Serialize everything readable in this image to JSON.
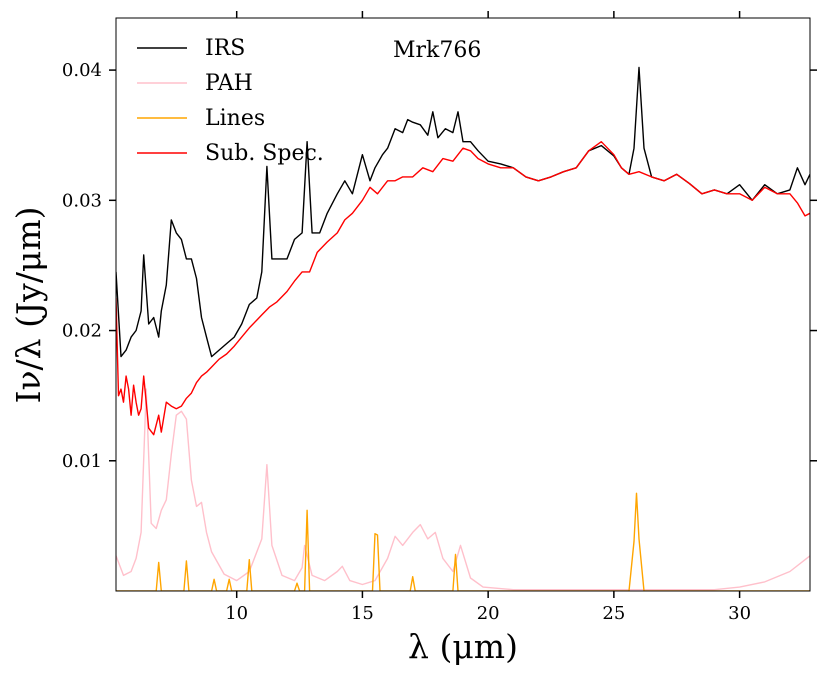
{
  "chart_data": {
    "type": "line",
    "title": "",
    "annotation": "Mrk766",
    "xlabel": "λ (μm)",
    "ylabel": "Iν/λ (Jy/μm)",
    "xlim": [
      5.2,
      32.8
    ],
    "ylim": [
      0.0,
      0.044
    ],
    "x_ticks": [
      10,
      15,
      20,
      25,
      30
    ],
    "x_tick_labels": [
      "10",
      "15",
      "20",
      "25",
      "30"
    ],
    "y_ticks": [
      0.01,
      0.02,
      0.03,
      0.04
    ],
    "y_tick_labels": [
      "0.01",
      "0.02",
      "0.03",
      "0.04"
    ],
    "grid": false,
    "legend_position": "top-left",
    "series": [
      {
        "name": "IRS",
        "color": "#000000",
        "x": [
          5.2,
          5.4,
          5.6,
          5.8,
          6.0,
          6.2,
          6.3,
          6.5,
          6.7,
          6.9,
          7.0,
          7.2,
          7.4,
          7.6,
          7.8,
          8.0,
          8.2,
          8.4,
          8.6,
          8.8,
          9.0,
          9.3,
          9.6,
          9.9,
          10.2,
          10.5,
          10.8,
          11.0,
          11.2,
          11.4,
          11.7,
          12.0,
          12.3,
          12.6,
          12.8,
          13.0,
          13.3,
          13.6,
          14.0,
          14.3,
          14.6,
          15.0,
          15.3,
          15.5,
          15.8,
          16.0,
          16.3,
          16.6,
          16.8,
          17.0,
          17.3,
          17.6,
          17.8,
          18.0,
          18.3,
          18.6,
          18.8,
          19.0,
          19.3,
          19.6,
          20.0,
          20.5,
          21.0,
          21.5,
          22.0,
          22.5,
          23.0,
          23.5,
          24.0,
          24.5,
          25.0,
          25.3,
          25.6,
          25.8,
          26.0,
          26.2,
          26.5,
          27.0,
          27.5,
          28.0,
          28.5,
          29.0,
          29.5,
          30.0,
          30.5,
          31.0,
          31.5,
          32.0,
          32.3,
          32.6,
          32.8
        ],
        "y": [
          0.0245,
          0.018,
          0.0185,
          0.0195,
          0.02,
          0.0215,
          0.0258,
          0.0205,
          0.021,
          0.0195,
          0.0215,
          0.0235,
          0.0285,
          0.0275,
          0.027,
          0.0255,
          0.0255,
          0.024,
          0.021,
          0.0195,
          0.018,
          0.0185,
          0.019,
          0.0195,
          0.0205,
          0.022,
          0.0225,
          0.0245,
          0.0326,
          0.0255,
          0.0255,
          0.0255,
          0.027,
          0.0275,
          0.0345,
          0.0275,
          0.0275,
          0.029,
          0.0305,
          0.0315,
          0.0305,
          0.0335,
          0.0315,
          0.0325,
          0.0335,
          0.034,
          0.0355,
          0.0352,
          0.0362,
          0.036,
          0.0358,
          0.035,
          0.0368,
          0.0348,
          0.0355,
          0.0352,
          0.0368,
          0.0345,
          0.0345,
          0.0338,
          0.033,
          0.0328,
          0.0325,
          0.0318,
          0.0315,
          0.0318,
          0.0322,
          0.0325,
          0.0338,
          0.0342,
          0.0334,
          0.0325,
          0.032,
          0.034,
          0.0402,
          0.034,
          0.0318,
          0.0315,
          0.032,
          0.0313,
          0.0305,
          0.0308,
          0.0305,
          0.0312,
          0.03,
          0.0312,
          0.0305,
          0.0308,
          0.0325,
          0.0312,
          0.032
        ]
      },
      {
        "name": "PAH",
        "color": "#ffc0cb",
        "x": [
          5.2,
          5.5,
          5.8,
          6.0,
          6.2,
          6.4,
          6.6,
          6.8,
          7.0,
          7.2,
          7.4,
          7.6,
          7.8,
          8.0,
          8.2,
          8.4,
          8.6,
          8.8,
          9.0,
          9.5,
          10.0,
          10.5,
          11.0,
          11.2,
          11.4,
          11.8,
          12.3,
          12.6,
          12.7,
          13.0,
          13.5,
          14.0,
          14.2,
          14.5,
          15.0,
          15.5,
          16.0,
          16.3,
          16.6,
          17.0,
          17.3,
          17.6,
          17.9,
          18.2,
          18.6,
          18.9,
          19.3,
          19.8,
          21.0,
          23.0,
          25.0,
          27.0,
          29.0,
          30.0,
          31.0,
          32.0,
          32.8
        ],
        "y": [
          0.0027,
          0.0012,
          0.0015,
          0.0025,
          0.0045,
          0.0155,
          0.0052,
          0.0048,
          0.0062,
          0.007,
          0.0105,
          0.0135,
          0.0138,
          0.0132,
          0.0085,
          0.0065,
          0.0068,
          0.0045,
          0.003,
          0.0013,
          0.0008,
          0.0015,
          0.004,
          0.0097,
          0.0035,
          0.0012,
          0.0008,
          0.0018,
          0.0035,
          0.0012,
          0.0008,
          0.0015,
          0.0019,
          0.0008,
          0.0005,
          0.0008,
          0.0025,
          0.0042,
          0.0035,
          0.0045,
          0.0051,
          0.004,
          0.0045,
          0.0025,
          0.0015,
          0.0035,
          0.001,
          0.0003,
          0.0001,
          0.0001,
          0.0001,
          0.0001,
          0.0001,
          0.0003,
          0.0007,
          0.0015,
          0.0027
        ]
      },
      {
        "name": "Lines",
        "color": "#ffa500",
        "x": [
          5.2,
          6.8,
          6.9,
          7.0,
          7.1,
          7.9,
          8.0,
          8.1,
          9.0,
          9.1,
          9.2,
          9.6,
          9.7,
          9.8,
          10.4,
          10.5,
          10.6,
          12.3,
          12.4,
          12.5,
          12.7,
          12.8,
          12.9,
          15.4,
          15.5,
          15.6,
          15.7,
          16.9,
          17.0,
          17.1,
          18.6,
          18.7,
          18.8,
          25.6,
          25.8,
          25.9,
          26.0,
          26.2,
          32.8
        ],
        "y": [
          0.0,
          0.0,
          0.0022,
          0.0,
          0.0,
          0.0,
          0.0023,
          0.0,
          0.0,
          0.0009,
          0.0,
          0.0,
          0.0009,
          0.0,
          0.0,
          0.0024,
          0.0,
          0.0,
          0.0006,
          0.0,
          0.0,
          0.0062,
          0.0,
          0.0,
          0.0044,
          0.0043,
          0.0,
          0.0,
          0.0011,
          0.0,
          0.0,
          0.0028,
          0.0,
          0.0,
          0.0038,
          0.0075,
          0.004,
          0.0,
          0.0
        ]
      },
      {
        "name": "Sub. Spec.",
        "color": "#ff0000",
        "x": [
          5.2,
          5.3,
          5.4,
          5.5,
          5.6,
          5.7,
          5.8,
          5.9,
          6.0,
          6.1,
          6.2,
          6.3,
          6.5,
          6.7,
          6.9,
          7.0,
          7.2,
          7.4,
          7.6,
          7.8,
          8.0,
          8.2,
          8.4,
          8.6,
          8.8,
          9.0,
          9.3,
          9.6,
          9.9,
          10.2,
          10.5,
          10.8,
          11.0,
          11.3,
          11.6,
          12.0,
          12.3,
          12.6,
          12.9,
          13.2,
          13.6,
          14.0,
          14.3,
          14.6,
          15.0,
          15.3,
          15.6,
          16.0,
          16.3,
          16.6,
          17.0,
          17.4,
          17.8,
          18.2,
          18.6,
          19.0,
          19.3,
          19.6,
          20.0,
          20.5,
          21.0,
          21.5,
          22.0,
          22.5,
          23.0,
          23.5,
          24.0,
          24.5,
          25.0,
          25.3,
          25.6,
          26.0,
          26.5,
          27.0,
          27.5,
          28.0,
          28.5,
          29.0,
          29.5,
          30.0,
          30.5,
          31.0,
          31.5,
          32.0,
          32.3,
          32.6,
          32.8
        ],
        "y": [
          0.0225,
          0.015,
          0.0155,
          0.0145,
          0.0165,
          0.0155,
          0.0135,
          0.0158,
          0.0145,
          0.0135,
          0.014,
          0.0165,
          0.0125,
          0.012,
          0.0135,
          0.0122,
          0.0145,
          0.0142,
          0.014,
          0.0142,
          0.0148,
          0.0152,
          0.016,
          0.0165,
          0.0168,
          0.0172,
          0.0178,
          0.0182,
          0.0188,
          0.0195,
          0.0202,
          0.0208,
          0.0212,
          0.0218,
          0.0222,
          0.023,
          0.0238,
          0.0245,
          0.0245,
          0.026,
          0.0268,
          0.0275,
          0.0285,
          0.029,
          0.03,
          0.031,
          0.0305,
          0.0315,
          0.0315,
          0.0318,
          0.0318,
          0.0325,
          0.0322,
          0.0332,
          0.033,
          0.034,
          0.0338,
          0.0332,
          0.0328,
          0.0325,
          0.0325,
          0.0318,
          0.0315,
          0.0318,
          0.0322,
          0.0325,
          0.0338,
          0.0345,
          0.0335,
          0.0325,
          0.032,
          0.0322,
          0.0318,
          0.0315,
          0.032,
          0.0313,
          0.0305,
          0.0308,
          0.0305,
          0.0305,
          0.03,
          0.031,
          0.0305,
          0.0305,
          0.0298,
          0.0288,
          0.029
        ]
      }
    ]
  }
}
